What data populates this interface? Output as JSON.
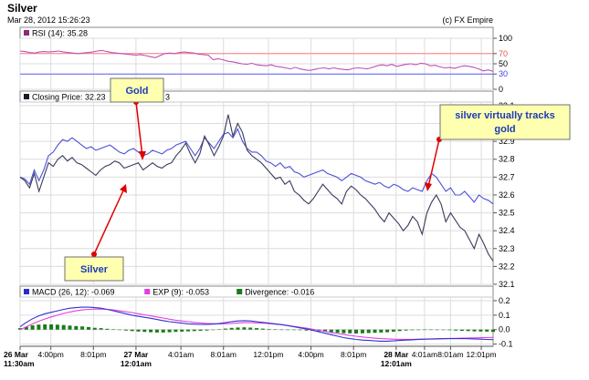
{
  "header": {
    "title": "Silver",
    "datetime": "Mar 28, 2012 15:26:23",
    "copyright": "(c) FX Empire"
  },
  "colors": {
    "silver_line": "#3a3a5c",
    "gold_line": "#4b50d8",
    "rsi_line": "#c050b8",
    "rsi_70_line": "#ff8080",
    "rsi_30_line": "#6060ff",
    "macd_line": "#3030d0",
    "exp_line": "#e040e0",
    "divergence_bar": "#1a7a1a",
    "callout_fill": "#ffffb0",
    "callout_border": "#707070",
    "arrow": "#e00000",
    "grid": "#dcdcdc",
    "frame": "#888888"
  },
  "chart_data": [
    {
      "type": "line",
      "panel": "rsi",
      "legend": [
        {
          "label": "RSI (14): 35.28",
          "color": "#8b2a7a"
        }
      ],
      "y_ticks": [
        "100",
        "70",
        "50",
        "30",
        "0"
      ],
      "ylim": [
        0,
        100
      ],
      "reference_lines": [
        70,
        30
      ],
      "series": [
        {
          "name": "RSI (14)",
          "values": [
            75,
            74,
            72,
            71,
            73,
            74,
            73,
            74,
            75,
            73,
            72,
            71,
            70,
            71,
            72,
            73,
            75,
            76,
            74,
            72,
            71,
            70,
            69,
            68,
            67,
            68,
            66,
            64,
            62,
            66,
            70,
            71,
            70,
            72,
            73,
            72,
            71,
            69,
            68,
            67,
            58,
            60,
            58,
            55,
            54,
            52,
            50,
            49,
            51,
            48,
            47,
            46,
            48,
            45,
            44,
            42,
            40,
            43,
            40,
            38,
            37,
            39,
            41,
            42,
            40,
            42,
            40,
            39,
            38,
            41,
            42,
            41,
            40,
            43,
            46,
            48,
            46,
            49,
            45,
            47,
            49,
            50,
            48,
            51,
            50,
            46,
            47,
            44,
            42,
            43,
            41,
            44,
            46,
            45,
            43,
            40,
            36,
            38,
            35
          ]
        }
      ]
    },
    {
      "type": "line",
      "panel": "price",
      "legend": [
        {
          "label": "Closing Price: 32.23",
          "color": "#1a1a2a"
        },
        {
          "label": "3",
          "color": "#1a1a2a"
        }
      ],
      "y_ticks": [
        "33.1",
        "33.0",
        "32.9",
        "32.8",
        "32.7",
        "32.6",
        "32.5",
        "32.4",
        "32.3",
        "32.2",
        "32.1"
      ],
      "ylim": [
        32.1,
        33.12
      ],
      "series": [
        {
          "values": [
            32.7,
            32.68,
            32.64,
            32.72,
            32.62,
            32.7,
            32.78,
            32.76,
            32.8,
            32.82,
            32.79,
            32.81,
            32.78,
            32.77,
            32.75,
            32.73,
            32.71,
            32.74,
            32.76,
            32.77,
            32.79,
            32.78,
            32.75,
            32.76,
            32.77,
            32.78,
            32.74,
            32.76,
            32.78,
            32.76,
            32.75,
            32.77,
            32.78,
            32.82,
            32.85,
            32.89,
            32.83,
            32.78,
            32.83,
            32.93,
            32.88,
            32.82,
            32.87,
            32.93,
            33.05,
            32.93,
            33.0,
            32.95,
            32.85,
            32.82,
            32.8,
            32.78,
            32.75,
            32.72,
            32.69,
            32.7,
            32.66,
            32.68,
            32.62,
            32.6,
            32.57,
            32.55,
            32.58,
            32.62,
            32.66,
            32.63,
            32.6,
            32.58,
            32.55,
            32.62,
            32.65,
            32.63,
            32.6,
            32.58,
            32.55,
            32.52,
            32.48,
            32.45,
            32.5,
            32.47,
            32.44,
            32.4,
            32.43,
            32.48,
            32.45,
            32.38,
            32.5,
            32.56,
            32.6,
            32.55,
            32.45,
            32.5,
            32.46,
            32.42,
            32.4,
            32.35,
            32.3,
            32.38,
            32.33,
            32.27,
            32.23
          ]
        },
        {
          "values": [
            32.7,
            32.69,
            32.66,
            32.74,
            32.68,
            32.74,
            32.82,
            32.84,
            32.88,
            32.91,
            32.9,
            32.92,
            32.9,
            32.88,
            32.86,
            32.87,
            32.85,
            32.86,
            32.87,
            32.88,
            32.86,
            32.84,
            32.83,
            32.85,
            32.86,
            32.84,
            32.82,
            32.83,
            32.85,
            32.84,
            32.83,
            32.85,
            32.86,
            32.88,
            32.89,
            32.9,
            32.86,
            32.82,
            32.86,
            32.92,
            32.89,
            32.86,
            32.9,
            32.94,
            32.95,
            32.92,
            32.97,
            32.9,
            32.86,
            32.84,
            32.84,
            32.82,
            32.79,
            32.78,
            32.76,
            32.78,
            32.75,
            32.76,
            32.73,
            32.72,
            32.7,
            32.71,
            32.72,
            32.73,
            32.74,
            32.72,
            32.71,
            32.7,
            32.68,
            32.7,
            32.72,
            32.71,
            32.7,
            32.68,
            32.67,
            32.66,
            32.67,
            32.65,
            32.64,
            32.66,
            32.65,
            32.63,
            32.62,
            32.64,
            32.63,
            32.62,
            32.68,
            32.72,
            32.7,
            32.66,
            32.62,
            32.64,
            32.6,
            32.6,
            32.62,
            32.59,
            32.56,
            32.6,
            32.58,
            32.57,
            32.55
          ]
        }
      ]
    },
    {
      "type": "line",
      "panel": "macd",
      "legend": [
        {
          "label": "MACD (26, 12): -0.069",
          "color": "#2a2ad0"
        },
        {
          "label": "EXP (9): -0.053",
          "color": "#e040e0"
        },
        {
          "label": "Divergence: -0.016",
          "color": "#1a7a1a"
        }
      ],
      "y_ticks": [
        "0.2",
        "0.1",
        "0.0",
        "-0.1"
      ],
      "ylim": [
        -0.115,
        0.225
      ],
      "series": [
        {
          "name": "MACD (26, 12)",
          "values": [
            0.02,
            0.05,
            0.075,
            0.095,
            0.11,
            0.12,
            0.13,
            0.14,
            0.148,
            0.152,
            0.155,
            0.155,
            0.152,
            0.148,
            0.14,
            0.13,
            0.12,
            0.11,
            0.1,
            0.092,
            0.085,
            0.078,
            0.07,
            0.062,
            0.055,
            0.05,
            0.045,
            0.04,
            0.038,
            0.036,
            0.036,
            0.038,
            0.042,
            0.048,
            0.055,
            0.06,
            0.062,
            0.06,
            0.055,
            0.05,
            0.045,
            0.04,
            0.035,
            0.028,
            0.02,
            0.012,
            0.005,
            -0.005,
            -0.015,
            -0.025,
            -0.035,
            -0.045,
            -0.055,
            -0.062,
            -0.068,
            -0.072,
            -0.075,
            -0.078,
            -0.08,
            -0.08,
            -0.078,
            -0.075,
            -0.072,
            -0.07,
            -0.068,
            -0.066,
            -0.065,
            -0.064,
            -0.063,
            -0.062,
            -0.062,
            -0.062,
            -0.063,
            -0.064,
            -0.066,
            -0.068,
            -0.069
          ]
        },
        {
          "name": "EXP (9)",
          "values": [
            0.0,
            0.02,
            0.04,
            0.058,
            0.074,
            0.088,
            0.1,
            0.112,
            0.122,
            0.13,
            0.136,
            0.14,
            0.142,
            0.142,
            0.14,
            0.136,
            0.13,
            0.124,
            0.118,
            0.11,
            0.102,
            0.095,
            0.088,
            0.08,
            0.072,
            0.065,
            0.06,
            0.055,
            0.05,
            0.046,
            0.043,
            0.041,
            0.04,
            0.041,
            0.043,
            0.046,
            0.048,
            0.048,
            0.047,
            0.045,
            0.042,
            0.038,
            0.034,
            0.028,
            0.022,
            0.016,
            0.01,
            0.003,
            -0.005,
            -0.012,
            -0.02,
            -0.027,
            -0.034,
            -0.04,
            -0.046,
            -0.051,
            -0.055,
            -0.059,
            -0.062,
            -0.064,
            -0.066,
            -0.067,
            -0.067,
            -0.067,
            -0.066,
            -0.065,
            -0.064,
            -0.063,
            -0.062,
            -0.061,
            -0.06,
            -0.059,
            -0.058,
            -0.057,
            -0.056,
            -0.055,
            -0.053
          ]
        },
        {
          "name": "Divergence",
          "values": [
            0.01,
            0.02,
            0.03,
            0.035,
            0.036,
            0.036,
            0.034,
            0.032,
            0.028,
            0.025,
            0.022,
            0.018,
            0.013,
            0.01,
            0.006,
            0.002,
            -0.002,
            -0.006,
            -0.01,
            -0.013,
            -0.016,
            -0.018,
            -0.02,
            -0.02,
            -0.018,
            -0.016,
            -0.014,
            -0.012,
            -0.01,
            -0.008,
            -0.006,
            -0.003,
            0.002,
            0.007,
            0.012,
            0.015,
            0.016,
            0.014,
            0.01,
            0.007,
            0.004,
            0.002,
            0.001,
            0.0,
            -0.002,
            -0.004,
            -0.006,
            -0.008,
            -0.012,
            -0.015,
            -0.018,
            -0.022,
            -0.025,
            -0.026,
            -0.027,
            -0.026,
            -0.024,
            -0.022,
            -0.02,
            -0.018,
            -0.014,
            -0.01,
            -0.006,
            -0.004,
            -0.002,
            0.001,
            0.001,
            0.0,
            -0.002,
            -0.004,
            -0.006,
            -0.008,
            -0.01,
            -0.012,
            -0.013,
            -0.014,
            -0.016
          ]
        }
      ]
    }
  ],
  "x_axis": {
    "ticks": [
      {
        "label": "26 Mar",
        "label2": "11:30am",
        "bold": true,
        "pos": 0.0
      },
      {
        "label": "4:00pm",
        "pos": 0.065
      },
      {
        "label": "8:01pm",
        "pos": 0.155
      },
      {
        "label": "27 Mar",
        "label2": "12:01am",
        "bold": true,
        "pos": 0.245
      },
      {
        "label": "4:01am",
        "pos": 0.34
      },
      {
        "label": "8:01am",
        "pos": 0.43
      },
      {
        "label": "12:01pm",
        "pos": 0.525
      },
      {
        "label": "4:00pm",
        "pos": 0.615
      },
      {
        "label": "8:01pm",
        "pos": 0.705
      },
      {
        "label": "28 Mar",
        "label2": "12:01am",
        "bold": true,
        "pos": 0.795
      },
      {
        "label": "4:01am",
        "pos": 0.855
      },
      {
        "label": "8:01am",
        "pos": 0.91
      },
      {
        "label": "12:01pm",
        "pos": 0.975
      }
    ]
  },
  "annotations": {
    "gold": "Gold",
    "silver": "Silver",
    "tracks_line1": "silver virtually tracks",
    "tracks_line2": "gold"
  }
}
